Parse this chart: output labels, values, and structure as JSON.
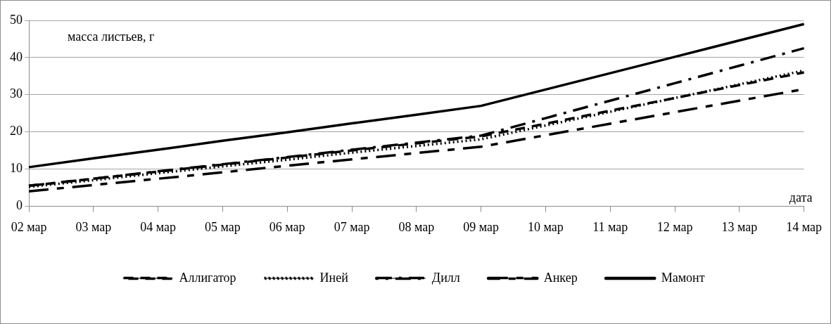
{
  "chart_data": {
    "type": "line",
    "ylabel": "масса листьев, г",
    "xlabel": "дата",
    "categories": [
      "02 мар",
      "03 мар",
      "04 мар",
      "05 мар",
      "06 мар",
      "07 мар",
      "08 мар",
      "09 мар",
      "10 мар",
      "11 мар",
      "12 мар",
      "13 мар",
      "14 мар"
    ],
    "ylim": [
      0,
      50
    ],
    "yticks": [
      0,
      10,
      20,
      30,
      40,
      50
    ],
    "grid": "y",
    "legend": "bottom",
    "marker": "none",
    "series": [
      {
        "name": "Аллигатор",
        "color": "#000000",
        "line_style": "dashed",
        "values": [
          5.5,
          7.4,
          9.3,
          11.2,
          13.1,
          15,
          16.9,
          18.8,
          22.2,
          25.7,
          29.1,
          32.6,
          36
        ]
      },
      {
        "name": "Иней",
        "color": "#000000",
        "line_style": "dotted",
        "values": [
          5.2,
          7,
          8.9,
          10.7,
          12.5,
          14.4,
          16.2,
          18,
          21.7,
          25.4,
          29.1,
          32.8,
          36.5
        ]
      },
      {
        "name": "Дилл",
        "color": "#000000",
        "line_style": "dashed",
        "values": [
          5.5,
          7.4,
          9.4,
          11.3,
          13.2,
          15.2,
          17.1,
          19,
          23.7,
          28.4,
          33.1,
          37.8,
          42.5
        ]
      },
      {
        "name": "Анкер",
        "color": "#000000",
        "line_style": "dashed",
        "values": [
          4,
          5.7,
          7.4,
          9.1,
          10.9,
          12.6,
          14.3,
          16,
          19.1,
          22.2,
          25.3,
          28.4,
          31.5
        ]
      },
      {
        "name": "Мамонт",
        "color": "#000000",
        "line_style": "solid",
        "values": [
          10.5,
          12.9,
          15.2,
          17.6,
          19.9,
          22.3,
          24.6,
          27,
          31.4,
          35.8,
          40.2,
          44.6,
          49
        ]
      }
    ]
  }
}
